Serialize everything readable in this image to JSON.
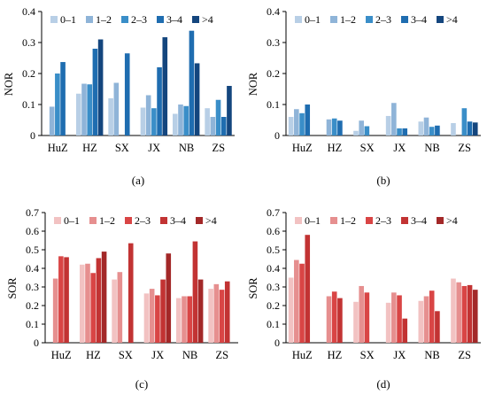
{
  "chart_data": [
    {
      "type": "bar",
      "panel_label": "(a)",
      "ylabel": "NOR",
      "ylim": [
        0,
        0.4
      ],
      "yticks": [
        "0",
        "0.1",
        "0.2",
        "0.3",
        "0.4"
      ],
      "categories": [
        "HuZ",
        "HZ",
        "SX",
        "JX",
        "NB",
        "ZS"
      ],
      "legend_position": "top",
      "series": [
        {
          "name": "0–1",
          "color": "#b8cfe6",
          "values": [
            0,
            0.135,
            0.12,
            0.09,
            0.07,
            0.088
          ]
        },
        {
          "name": "1–2",
          "color": "#8fb4d8",
          "values": [
            0.093,
            0.167,
            0.17,
            0.13,
            0.1,
            0.06
          ]
        },
        {
          "name": "2–3",
          "color": "#3a8ec8",
          "values": [
            0.2,
            0.165,
            0,
            0.088,
            0.095,
            0.115
          ]
        },
        {
          "name": "3–4",
          "color": "#1f6db0",
          "values": [
            0.237,
            0.28,
            0.265,
            0.22,
            0.338,
            0.06
          ]
        },
        {
          "name": ">4",
          "color": "#14467e",
          "values": [
            0,
            0.31,
            0,
            0.317,
            0.233,
            0.16
          ]
        }
      ]
    },
    {
      "type": "bar",
      "panel_label": "(b)",
      "ylabel": "NOR",
      "ylim": [
        0,
        0.4
      ],
      "yticks": [
        "0",
        "0.1",
        "0.2",
        "0.3",
        "0.4"
      ],
      "categories": [
        "HuZ",
        "HZ",
        "SX",
        "JX",
        "NB",
        "ZS"
      ],
      "legend_position": "top",
      "series": [
        {
          "name": "0–1",
          "color": "#b8cfe6",
          "values": [
            0.06,
            0,
            0.015,
            0.063,
            0.045,
            0.04
          ]
        },
        {
          "name": "1–2",
          "color": "#8fb4d8",
          "values": [
            0.085,
            0.052,
            0.048,
            0.105,
            0.058,
            0
          ]
        },
        {
          "name": "2–3",
          "color": "#3a8ec8",
          "values": [
            0.072,
            0.055,
            0.03,
            0.023,
            0.028,
            0.088
          ]
        },
        {
          "name": "3–4",
          "color": "#1f6db0",
          "values": [
            0.1,
            0.048,
            0,
            0.023,
            0.032,
            0.045
          ]
        },
        {
          "name": ">4",
          "color": "#14467e",
          "values": [
            0,
            0,
            0,
            0,
            0,
            0.042
          ]
        }
      ]
    },
    {
      "type": "bar",
      "panel_label": "(c)",
      "ylabel": "SOR",
      "ylim": [
        0,
        0.7
      ],
      "yticks": [
        "0",
        "0.1",
        "0.2",
        "0.3",
        "0.4",
        "0.5",
        "0.6",
        "0.7"
      ],
      "categories": [
        "HuZ",
        "HZ",
        "SX",
        "JX",
        "NB",
        "ZS"
      ],
      "legend_position": "top",
      "series": [
        {
          "name": "0–1",
          "color": "#f2c2c2",
          "values": [
            0,
            0.42,
            0.34,
            0.265,
            0.24,
            0.29
          ]
        },
        {
          "name": "1–2",
          "color": "#e68f8f",
          "values": [
            0.345,
            0.425,
            0.38,
            0.29,
            0.25,
            0.315
          ]
        },
        {
          "name": "2–3",
          "color": "#d94545",
          "values": [
            0.465,
            0.375,
            0,
            0.255,
            0.25,
            0.285
          ]
        },
        {
          "name": "3–4",
          "color": "#c23333",
          "values": [
            0.46,
            0.455,
            0.535,
            0.34,
            0.545,
            0.33
          ]
        },
        {
          "name": ">4",
          "color": "#a32828",
          "values": [
            0,
            0.49,
            0,
            0.48,
            0.34,
            0
          ]
        }
      ]
    },
    {
      "type": "bar",
      "panel_label": "(d)",
      "ylabel": "SOR",
      "ylim": [
        0,
        0.7
      ],
      "yticks": [
        "0",
        "0.1",
        "0.2",
        "0.3",
        "0.4",
        "0.5",
        "0.6",
        "0.7"
      ],
      "categories": [
        "HuZ",
        "HZ",
        "SX",
        "JX",
        "NB",
        "ZS"
      ],
      "legend_position": "top",
      "series": [
        {
          "name": "0–1",
          "color": "#f2c2c2",
          "values": [
            0.35,
            0,
            0.22,
            0.215,
            0.225,
            0.345
          ]
        },
        {
          "name": "1–2",
          "color": "#e68f8f",
          "values": [
            0.445,
            0.25,
            0.305,
            0.27,
            0.25,
            0.325
          ]
        },
        {
          "name": "2–3",
          "color": "#d94545",
          "values": [
            0.425,
            0.275,
            0.27,
            0.255,
            0.28,
            0.305
          ]
        },
        {
          "name": "3–4",
          "color": "#c23333",
          "values": [
            0.58,
            0.24,
            0,
            0.13,
            0.17,
            0.31
          ]
        },
        {
          "name": ">4",
          "color": "#a32828",
          "values": [
            0,
            0,
            0,
            0,
            0,
            0.285
          ]
        }
      ]
    }
  ]
}
